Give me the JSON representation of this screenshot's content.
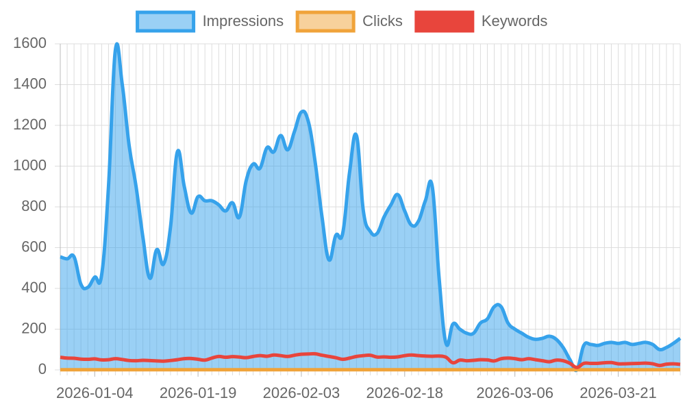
{
  "chart_data": {
    "type": "area",
    "x": [
      "2025-12-30",
      "2025-12-31",
      "2026-01-01",
      "2026-01-02",
      "2026-01-03",
      "2026-01-04",
      "2026-01-05",
      "2026-01-06",
      "2026-01-07",
      "2026-01-08",
      "2026-01-09",
      "2026-01-10",
      "2026-01-11",
      "2026-01-12",
      "2026-01-13",
      "2026-01-14",
      "2026-01-15",
      "2026-01-16",
      "2026-01-17",
      "2026-01-18",
      "2026-01-19",
      "2026-01-20",
      "2026-01-21",
      "2026-01-22",
      "2026-01-23",
      "2026-01-24",
      "2026-01-25",
      "2026-01-26",
      "2026-01-27",
      "2026-01-28",
      "2026-01-29",
      "2026-01-30",
      "2026-01-31",
      "2026-02-01",
      "2026-02-02",
      "2026-02-03",
      "2026-02-04",
      "2026-02-05",
      "2026-02-06",
      "2026-02-07",
      "2026-02-08",
      "2026-02-09",
      "2026-02-10",
      "2026-02-11",
      "2026-02-12",
      "2026-02-13",
      "2026-02-14",
      "2026-02-15",
      "2026-02-16",
      "2026-02-17",
      "2026-02-18",
      "2026-02-19",
      "2026-02-20",
      "2026-02-21",
      "2026-02-22",
      "2026-02-23",
      "2026-02-24",
      "2026-02-25",
      "2026-02-26",
      "2026-02-27",
      "2026-02-28",
      "2026-03-01",
      "2026-03-02",
      "2026-03-03",
      "2026-03-04",
      "2026-03-05",
      "2026-03-06",
      "2026-03-07",
      "2026-03-08",
      "2026-03-09",
      "2026-03-10",
      "2026-03-11",
      "2026-03-12",
      "2026-03-13",
      "2026-03-14",
      "2026-03-15",
      "2026-03-16",
      "2026-03-17",
      "2026-03-18",
      "2026-03-19",
      "2026-03-20",
      "2026-03-21",
      "2026-03-22",
      "2026-03-23",
      "2026-03-24",
      "2026-03-25",
      "2026-03-26",
      "2026-03-27",
      "2026-03-28",
      "2026-03-29",
      "2026-03-30"
    ],
    "xticks": [
      "2026-01-04",
      "2026-01-19",
      "2026-02-03",
      "2026-02-18",
      "2026-03-06",
      "2026-03-21"
    ],
    "series": [
      {
        "name": "Impressions",
        "color": "#36a2eb",
        "filled": true,
        "values": [
          555,
          545,
          555,
          420,
          405,
          455,
          465,
          900,
          1570,
          1400,
          1100,
          900,
          650,
          450,
          590,
          520,
          700,
          1070,
          900,
          770,
          850,
          830,
          830,
          810,
          780,
          820,
          750,
          930,
          1010,
          990,
          1090,
          1070,
          1150,
          1080,
          1170,
          1265,
          1220,
          1020,
          750,
          540,
          660,
          670,
          970,
          1150,
          780,
          680,
          670,
          750,
          810,
          860,
          780,
          710,
          730,
          830,
          900,
          450,
          130,
          225,
          200,
          180,
          180,
          230,
          250,
          310,
          310,
          230,
          200,
          180,
          160,
          150,
          155,
          165,
          150,
          110,
          50,
          0,
          120,
          125,
          120,
          130,
          135,
          130,
          135,
          125,
          130,
          135,
          125,
          100,
          110,
          130,
          155
        ]
      },
      {
        "name": "Clicks",
        "color": "#f0a33a",
        "filled": true,
        "values": [
          1,
          1,
          1,
          1,
          1,
          1,
          1,
          1,
          1,
          1,
          1,
          1,
          1,
          1,
          1,
          1,
          1,
          1,
          1,
          1,
          1,
          1,
          1,
          1,
          1,
          1,
          1,
          1,
          1,
          1,
          1,
          1,
          1,
          1,
          1,
          1,
          1,
          1,
          1,
          1,
          1,
          1,
          1,
          1,
          1,
          1,
          1,
          1,
          1,
          1,
          1,
          1,
          1,
          1,
          1,
          1,
          1,
          1,
          1,
          1,
          1,
          1,
          1,
          1,
          1,
          1,
          1,
          1,
          1,
          1,
          1,
          1,
          1,
          1,
          1,
          1,
          1,
          1,
          1,
          1,
          1,
          1,
          1,
          1,
          1,
          1,
          1,
          1,
          1,
          1,
          1
        ]
      },
      {
        "name": "Keywords",
        "color": "#e8453c",
        "filled": false,
        "values": [
          62,
          58,
          57,
          53,
          52,
          54,
          49,
          50,
          55,
          51,
          46,
          45,
          47,
          46,
          44,
          43,
          46,
          50,
          55,
          56,
          52,
          48,
          58,
          66,
          62,
          65,
          63,
          60,
          66,
          70,
          67,
          73,
          70,
          66,
          72,
          77,
          78,
          79,
          72,
          66,
          60,
          52,
          58,
          66,
          70,
          72,
          63,
          64,
          62,
          64,
          70,
          73,
          70,
          68,
          67,
          68,
          62,
          35,
          48,
          45,
          47,
          50,
          49,
          44,
          55,
          58,
          55,
          50,
          55,
          50,
          45,
          40,
          48,
          45,
          32,
          12,
          32,
          32,
          32,
          35,
          36,
          30,
          30,
          31,
          32,
          33,
          30,
          22,
          28,
          30,
          27
        ]
      }
    ],
    "ylim": [
      0,
      1600
    ],
    "yticks": [
      0,
      200,
      400,
      600,
      800,
      1000,
      1200,
      1400,
      1600
    ],
    "grid": true,
    "legend": "top"
  }
}
